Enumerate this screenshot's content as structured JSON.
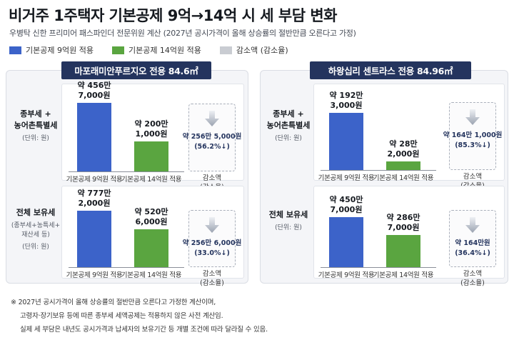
{
  "title": "비거주 1주택자 기본공제 9억→14억 시 세 부담 변화",
  "subtitle": "우병탁 신한 프리미어 패스파인더 전문위원 계산 (2027년 공시가격이 올해 상승률의 절반만큼 오른다고 가정)",
  "legend": [
    {
      "label": "기본공제 9억원 적용",
      "color": "#3c63c9"
    },
    {
      "label": "기본공제 14억원 적용",
      "color": "#5aa540"
    },
    {
      "label": "감소액 (감소율)",
      "color": "#c9ccd2"
    }
  ],
  "chart_data": [
    {
      "type": "bar",
      "panel": "마포래미안푸르지오 전용 84.6㎡",
      "row_label": "종부세 +",
      "row_label_2": "농어촌특별세",
      "row_sub": "(단위: 원)",
      "categories": [
        "기본공제 9억원 적용",
        "기본공제 14억원 적용"
      ],
      "values": [
        4567000000,
        2001000000
      ],
      "value_labels": [
        [
          "약 456만",
          "7,000원"
        ],
        [
          "약 200만",
          "1,000원"
        ]
      ],
      "reduction_label": [
        "약 256만 5,000원",
        "(56.2%↓)"
      ],
      "reduction_axis": [
        "감소액",
        "(감소율)"
      ]
    },
    {
      "type": "bar",
      "panel": "마포래미안푸르지오 전용 84.6㎡",
      "row_label": "전체 보유세",
      "row_sub": "(종부세+농특세+",
      "row_sub_2": "재산세 등)",
      "row_sub_3": "(단위: 원)",
      "categories": [
        "기본공제 9억원 적용",
        "기본공제 14억원 적용"
      ],
      "values": [
        7772000000,
        5206000000
      ],
      "value_labels": [
        [
          "약 777만",
          "2,000원"
        ],
        [
          "약 520만",
          "6,000원"
        ]
      ],
      "reduction_label": [
        "약 256만 6,000원",
        "(33.0%↓)"
      ],
      "reduction_axis": [
        "감소액",
        "(감소율)"
      ]
    },
    {
      "type": "bar",
      "panel": "하왕십리 센트라스 전용 84.96㎡",
      "row_label": "종부세 +",
      "row_label_2": "농어촌특별세",
      "row_sub": "(단위: 원)",
      "categories": [
        "기본공제 9억원 적용",
        "기본공제 14억원 적용"
      ],
      "values": [
        1923000000,
        282000000
      ],
      "value_labels": [
        [
          "약 192만",
          "3,000원"
        ],
        [
          "약 28만",
          "2,000원"
        ]
      ],
      "reduction_label": [
        "약 164만 1,000원",
        "(85.3%↓)"
      ],
      "reduction_axis": [
        "감소액",
        "(감소율)"
      ]
    },
    {
      "type": "bar",
      "panel": "하왕십리 센트라스 전용 84.96㎡",
      "row_label": "전체 보유세",
      "row_sub": "(단위: 원)",
      "categories": [
        "기본공제 9억원 적용",
        "기본공제 14억원 적용"
      ],
      "values": [
        4507000000,
        2867000000
      ],
      "value_labels": [
        [
          "약 450만",
          "7,000원"
        ],
        [
          "약 286만",
          "7,000원"
        ]
      ],
      "reduction_label": [
        "약 164만원",
        "(36.4%↓)"
      ],
      "reduction_axis": [
        "감소액",
        "(감소율)"
      ]
    }
  ],
  "notes": [
    "※ 2027년 공시가격이 올해 상승률의 절반만큼 오른다고 가정한 계산이며,",
    "고령자·장기보유 등에 따른 종부세 세액공제는 적용하지 않은 사전 계산임.",
    "실제 세 부담은 내년도 공시가격과 납세자의 보유기간 등 개별 조건에 따라 달라질 수 있음."
  ]
}
